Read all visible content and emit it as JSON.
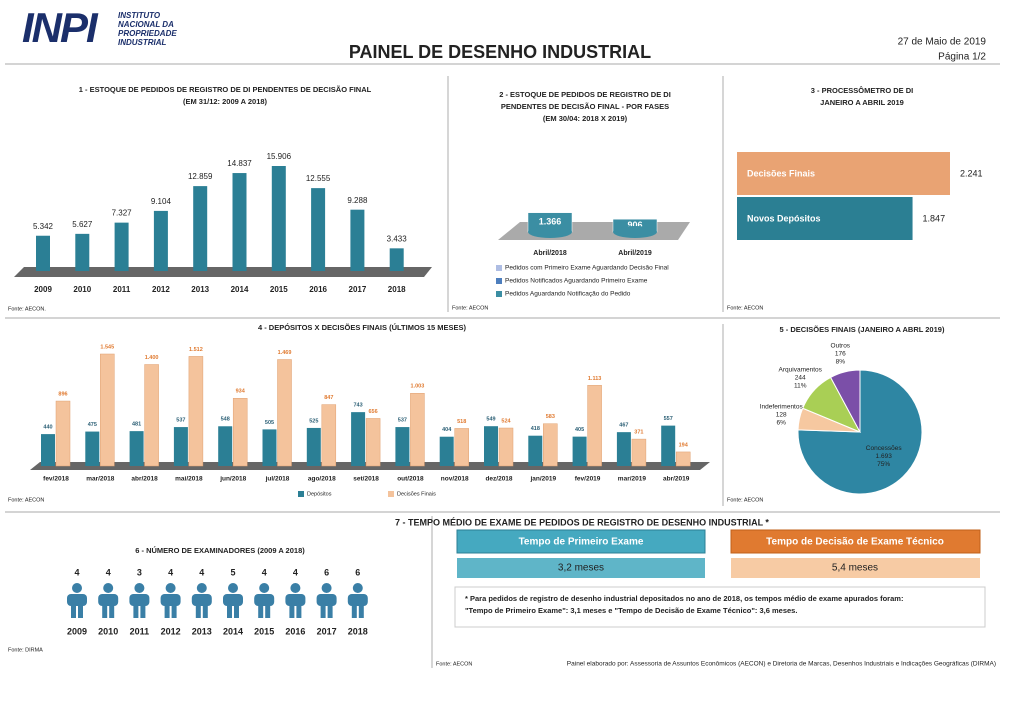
{
  "header": {
    "logo": "INPI",
    "institute": [
      "INSTITUTO",
      "NACIONAL DA",
      "PROPRIEDADE",
      "INDUSTRIAL"
    ],
    "title": "PAINEL DE DESENHO INDUSTRIAL",
    "date": "27 de Maio de 2019",
    "page": "Página 1/2"
  },
  "chart_data": [
    {
      "type": "bar",
      "title_lines": [
        "1 - ESTOQUE DE PEDIDOS DE REGISTRO DE DI PENDENTES DE DECISÃO FINAL",
        "(EM 31/12: 2009 A 2018)"
      ],
      "categories": [
        "2009",
        "2010",
        "2011",
        "2012",
        "2013",
        "2014",
        "2015",
        "2016",
        "2017",
        "2018"
      ],
      "values": [
        5342,
        5627,
        7327,
        9104,
        12859,
        14837,
        15906,
        12555,
        9288,
        3433
      ],
      "value_labels": [
        "5.342",
        "5.627",
        "7.327",
        "9.104",
        "12.859",
        "14.837",
        "15.906",
        "12.555",
        "9.288",
        "3.433"
      ],
      "color": "#2b7f95",
      "source": "Fonte: AECON."
    },
    {
      "type": "stacked-cylinder",
      "title_lines": [
        "2 - ESTOQUE DE PEDIDOS DE REGISTRO DE DI",
        "PENDENTES DE DECISÃO FINAL - POR FASES",
        "(EM 30/04: 2018 X 2019)"
      ],
      "categories": [
        "Abril/2018",
        "Abril/2019"
      ],
      "series": [
        {
          "name": "Pedidos Aguardando Notificação do Pedido",
          "color": "#3b8ea3",
          "values": [
            1366,
            906
          ],
          "value_labels": [
            "1.366",
            "906"
          ]
        },
        {
          "name": "Pedidos Notificados Aguardando Primeiro Exame",
          "color": "#4d7ebd",
          "values": [
            2230,
            883
          ],
          "value_labels": [
            "2.230",
            "883"
          ]
        },
        {
          "name": "Pedidos com Primeiro Exame Aguardando Decisão Final",
          "color": "#aebde3",
          "values": [
            2771,
            1420
          ],
          "value_labels": [
            "2.771",
            "1.420"
          ]
        }
      ],
      "source": "Fonte: AECON"
    },
    {
      "type": "hbar",
      "title_lines": [
        "3 - PROCESSÔMETRO DE DI",
        "JANEIRO A ABRIL 2019"
      ],
      "categories": [
        "Decisões Finais",
        "Novos Depósitos"
      ],
      "values": [
        2241,
        1847
      ],
      "value_labels": [
        "2.241",
        "1.847"
      ],
      "colors": [
        "#e9a373",
        "#2b7f93"
      ],
      "source": "Fonte: AECON"
    },
    {
      "type": "grouped-bar",
      "title_lines": [
        "4 - DEPÓSITOS X DECISÕES FINAIS (ÚLTIMOS 15 MESES)"
      ],
      "categories": [
        "fev/2018",
        "mar/2018",
        "abr/2018",
        "mai/2018",
        "jun/2018",
        "jul/2018",
        "ago/2018",
        "set/2018",
        "out/2018",
        "nov/2018",
        "dez/2018",
        "jan/2019",
        "fev/2019",
        "mar/2019",
        "abr/2019"
      ],
      "series": [
        {
          "name": "Depósitos",
          "color": "#2b7f95",
          "values": [
            440,
            475,
            481,
            537,
            548,
            505,
            525,
            743,
            537,
            404,
            549,
            418,
            405,
            467,
            557
          ]
        },
        {
          "name": "Decisões Finais",
          "color": "#f4c39c",
          "values": [
            896,
            1545,
            1400,
            1512,
            934,
            1469,
            847,
            656,
            1003,
            518,
            524,
            583,
            1113,
            371,
            194
          ],
          "value_labels": [
            "896",
            "1.545",
            "1.400",
            "1.512",
            "934",
            "1.469",
            "847",
            "656",
            "1.003",
            "518",
            "524",
            "583",
            "1.113",
            "371",
            "194"
          ]
        }
      ],
      "source": "Fonte: AECON"
    },
    {
      "type": "pie",
      "title_lines": [
        "5 - DECISÕES FINAIS (JANEIRO A  ABRL 2019)"
      ],
      "categories": [
        "Concessões",
        "Indeferimentos",
        "Arquivamentos",
        "Outros"
      ],
      "values": [
        1693,
        128,
        244,
        176
      ],
      "value_labels": [
        "1.693",
        "128",
        "244",
        "176"
      ],
      "percent_labels": [
        "75%",
        "6%",
        "11%",
        "8%"
      ],
      "colors": [
        "#2e86a3",
        "#f6c8a0",
        "#a9cf55",
        "#7b4fa8"
      ],
      "source": "Fonte: AECON"
    },
    {
      "type": "pictogram",
      "title_lines": [
        "6 - NÚMERO DE EXAMINADORES (2009 A 2018)"
      ],
      "categories": [
        "2009",
        "2010",
        "2011",
        "2012",
        "2013",
        "2014",
        "2015",
        "2016",
        "2017",
        "2018"
      ],
      "values": [
        4,
        4,
        3,
        4,
        4,
        5,
        4,
        4,
        6,
        6
      ],
      "color": "#3a7fa6",
      "source": "Fonte: DIRMA"
    }
  ],
  "panel7": {
    "title": "7 - TEMPO MÉDIO DE EXAME DE PEDIDOS DE REGISTRO DE DESENHO INDUSTRIAL *",
    "boxes": [
      {
        "label": "Tempo de Primeiro Exame",
        "value": "3,2 meses"
      },
      {
        "label": "Tempo de Decisão de Exame Técnico",
        "value": "5,4 meses"
      }
    ],
    "note": [
      "* Para pedidos de registro de desenho industrial depositados no ano de 2018, os tempos médio de exame apurados foram:",
      "\"Tempo de Primeiro Exame\": 3,1 meses e \"Tempo de Decisão de Exame Técnico\": 3,6 meses."
    ],
    "source": "Fonte: AECON",
    "credit": "Painel elaborado por: Assessoria de Assuntos Econômicos (AECON) e Diretoria de Marcas, Desenhos Industriais e Indicações Geográficas (DIRMA)"
  }
}
